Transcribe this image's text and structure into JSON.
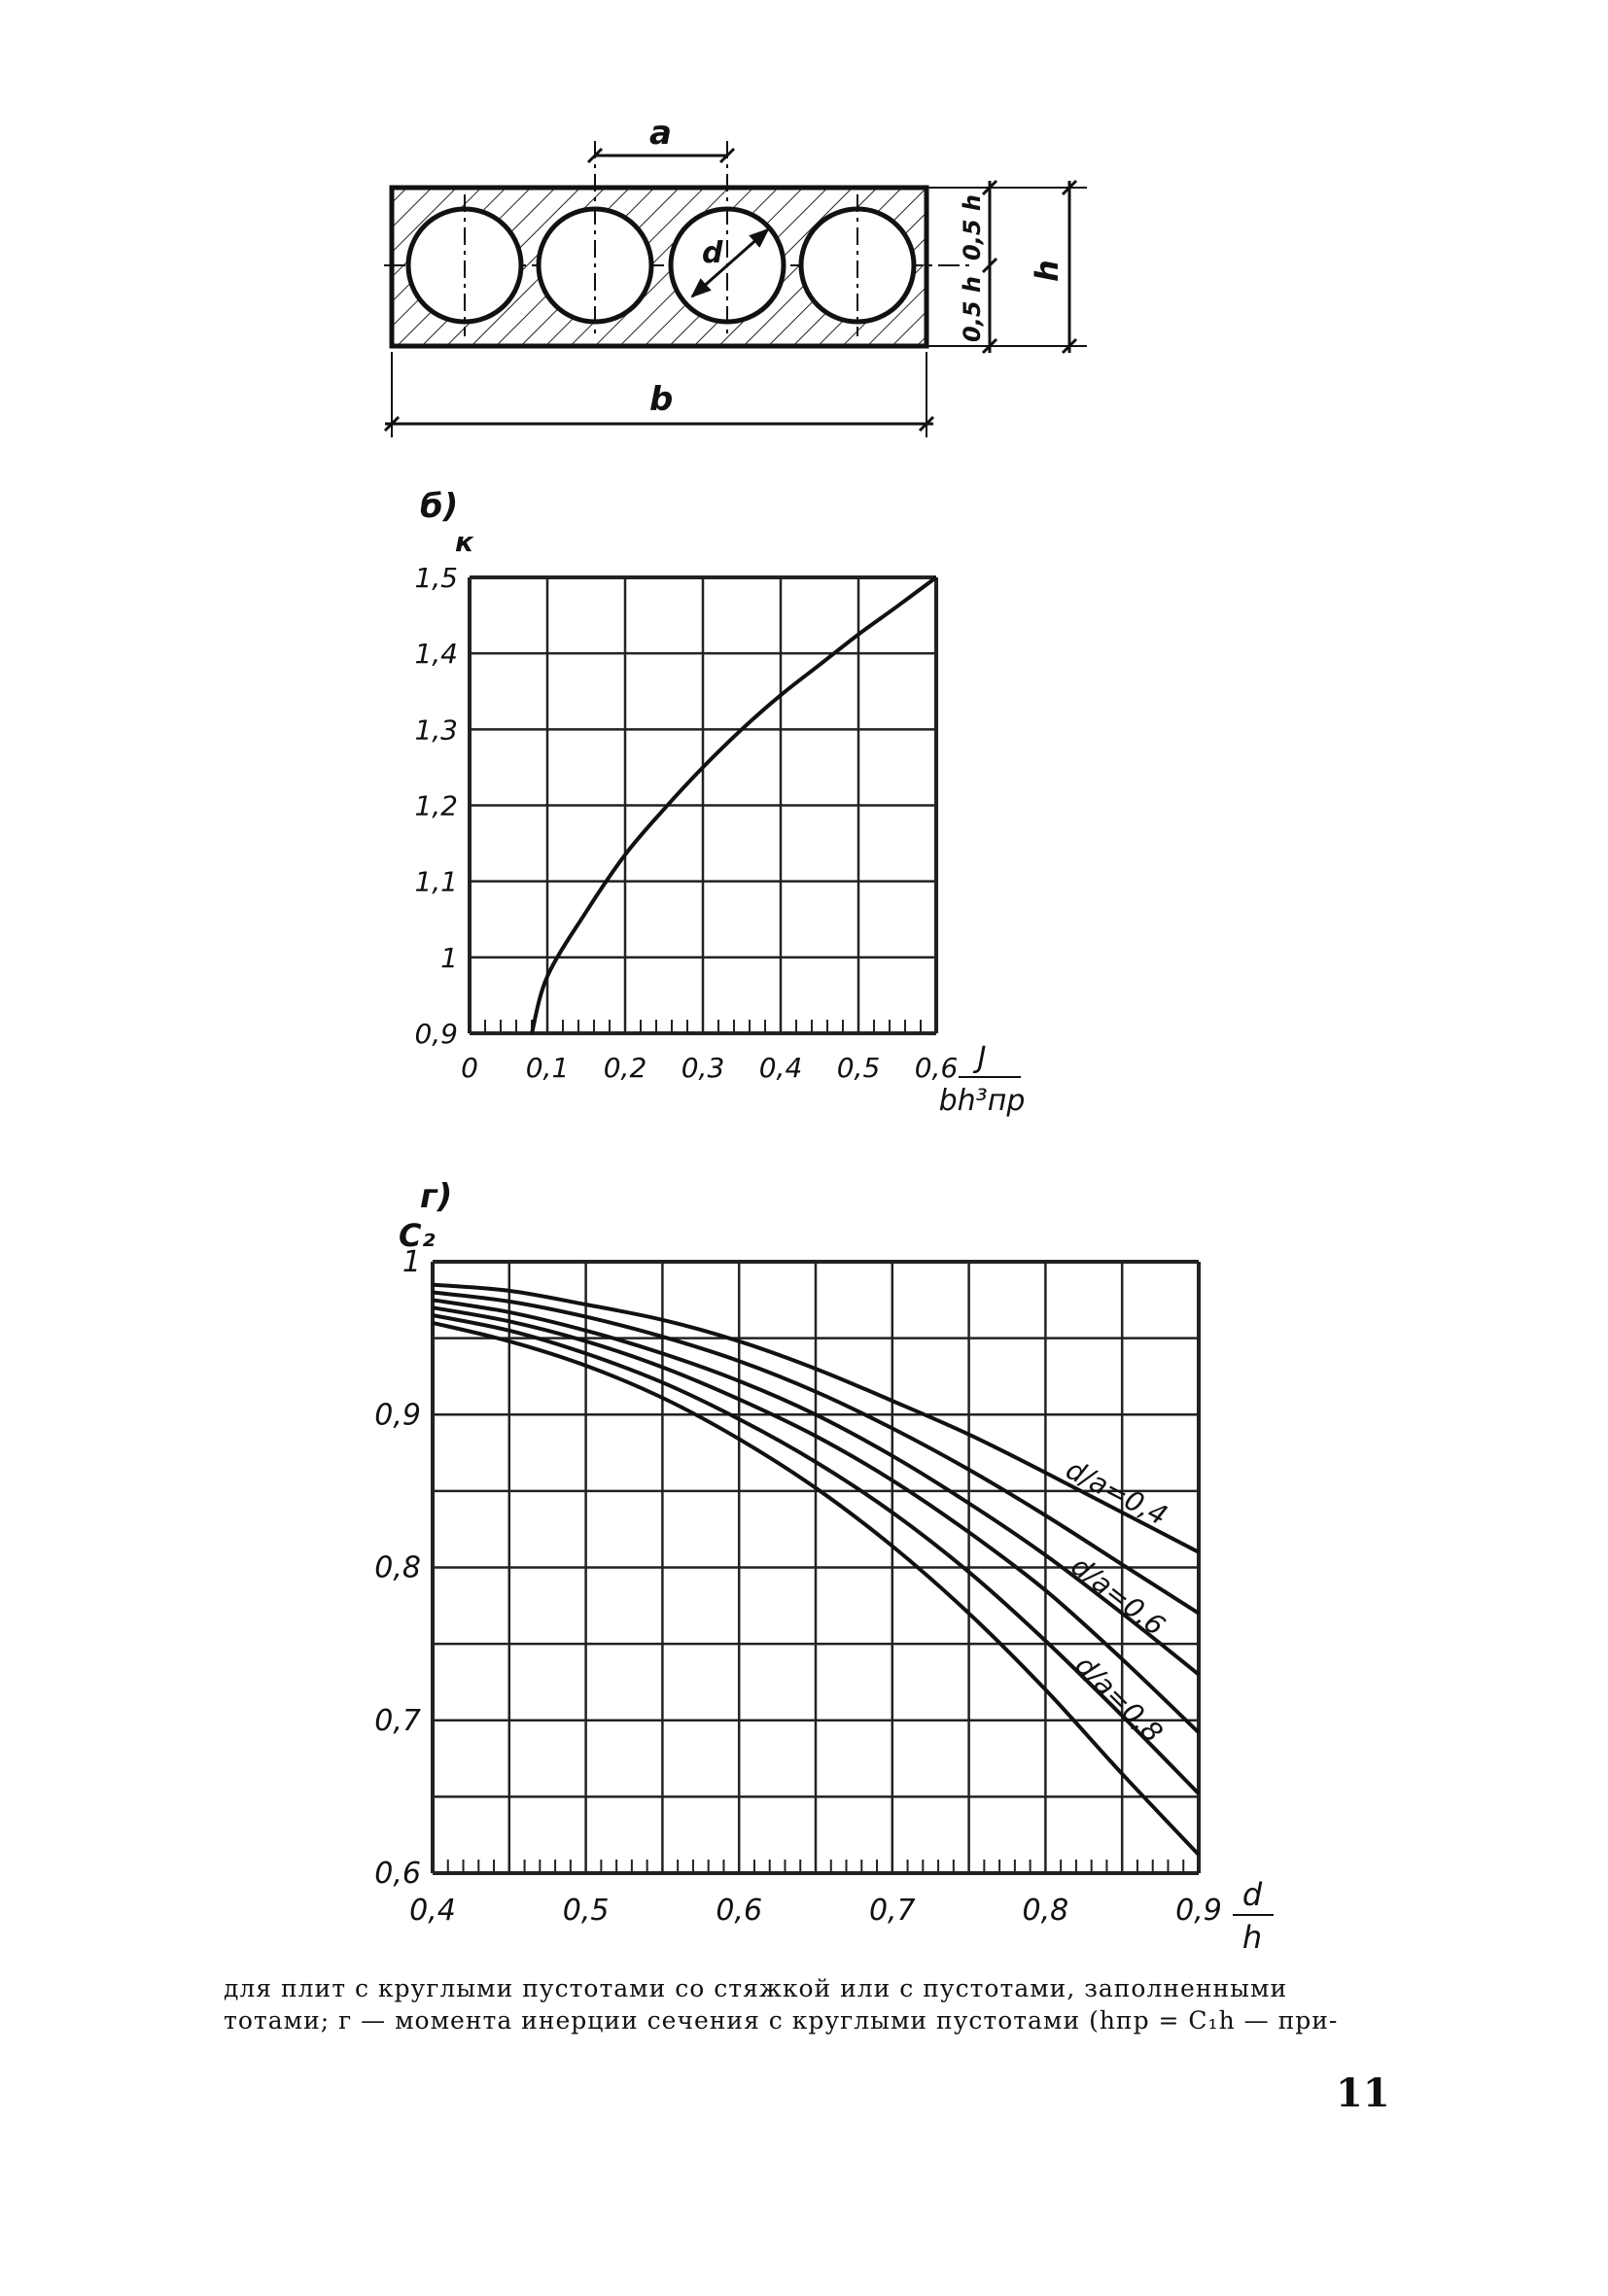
{
  "section_diagram": {
    "dim_a": "a",
    "dim_d": "d",
    "dim_b": "b",
    "dim_h": "h",
    "dim_half_top": "0,5 h",
    "dim_half_bottom": "0,5 h"
  },
  "chart_data": [
    {
      "type": "line",
      "panel_label": "б)",
      "ylabel": "к",
      "xlabel_numerator": "J",
      "xlabel_denominator": "bh³пр",
      "xlim": [
        0,
        0.6
      ],
      "ylim": [
        0.9,
        1.5
      ],
      "grid": true,
      "x_tick_labels": [
        "0",
        "0,1",
        "0,2",
        "0,3",
        "0,4",
        "0,5",
        "0,6"
      ],
      "y_tick_labels": [
        "0,9",
        "1",
        "1,1",
        "1,2",
        "1,3",
        "1,4",
        "1,5"
      ],
      "series": [
        {
          "x": [
            0.08,
            0.1,
            0.15,
            0.2,
            0.25,
            0.3,
            0.35,
            0.4,
            0.45,
            0.5,
            0.55,
            0.6
          ],
          "y": [
            0.9,
            0.975,
            1.06,
            1.135,
            1.195,
            1.25,
            1.3,
            1.345,
            1.385,
            1.425,
            1.462,
            1.5
          ]
        }
      ]
    },
    {
      "type": "line",
      "panel_label": "г)",
      "ylabel": "C₂",
      "xlabel_numerator": "d",
      "xlabel_denominator": "h",
      "xlim": [
        0.4,
        0.9
      ],
      "ylim": [
        0.6,
        1.0
      ],
      "grid": true,
      "x_tick_labels": [
        "0,4",
        "0,5",
        "0,6",
        "0,7",
        "0,8",
        "0,9"
      ],
      "y_tick_labels": [
        "0,6",
        "0,7",
        "0,8",
        "0,9",
        "1"
      ],
      "series": [
        {
          "name": "d/a=0,4",
          "x": [
            0.4,
            0.45,
            0.5,
            0.55,
            0.6,
            0.65,
            0.7,
            0.75,
            0.8,
            0.85,
            0.9
          ],
          "y": [
            0.985,
            0.981,
            0.972,
            0.962,
            0.948,
            0.93,
            0.909,
            0.887,
            0.862,
            0.836,
            0.81
          ]
        },
        {
          "name": "",
          "x": [
            0.4,
            0.45,
            0.5,
            0.55,
            0.6,
            0.65,
            0.7,
            0.75,
            0.8,
            0.85,
            0.9
          ],
          "y": [
            0.98,
            0.974,
            0.964,
            0.951,
            0.935,
            0.915,
            0.891,
            0.864,
            0.834,
            0.802,
            0.77
          ]
        },
        {
          "name": "d/a=0,6",
          "x": [
            0.4,
            0.45,
            0.5,
            0.55,
            0.6,
            0.65,
            0.7,
            0.75,
            0.8,
            0.85,
            0.9
          ],
          "y": [
            0.975,
            0.967,
            0.955,
            0.94,
            0.922,
            0.9,
            0.873,
            0.842,
            0.808,
            0.77,
            0.73
          ]
        },
        {
          "name": "",
          "x": [
            0.4,
            0.45,
            0.5,
            0.55,
            0.6,
            0.65,
            0.7,
            0.75,
            0.8,
            0.85,
            0.9
          ],
          "y": [
            0.97,
            0.961,
            0.948,
            0.931,
            0.91,
            0.886,
            0.857,
            0.823,
            0.785,
            0.74,
            0.692
          ]
        },
        {
          "name": "d/a=0,8",
          "x": [
            0.4,
            0.45,
            0.5,
            0.55,
            0.6,
            0.65,
            0.7,
            0.75,
            0.8,
            0.85,
            0.9
          ],
          "y": [
            0.965,
            0.955,
            0.94,
            0.921,
            0.897,
            0.869,
            0.836,
            0.797,
            0.752,
            0.703,
            0.652
          ]
        },
        {
          "name": "",
          "x": [
            0.4,
            0.45,
            0.5,
            0.55,
            0.6,
            0.65,
            0.7,
            0.75,
            0.8,
            0.85,
            0.9
          ],
          "y": [
            0.96,
            0.948,
            0.932,
            0.911,
            0.884,
            0.852,
            0.814,
            0.77,
            0.72,
            0.665,
            0.612
          ]
        }
      ]
    }
  ],
  "caption": {
    "line1": "для плит с круглыми пустотами со стяжкой или с пустотами, заполненными",
    "line2": "тотами; г — момента инерции сечения с круглыми пустотами (hпр = C₁h — при-"
  },
  "page_number": "11"
}
